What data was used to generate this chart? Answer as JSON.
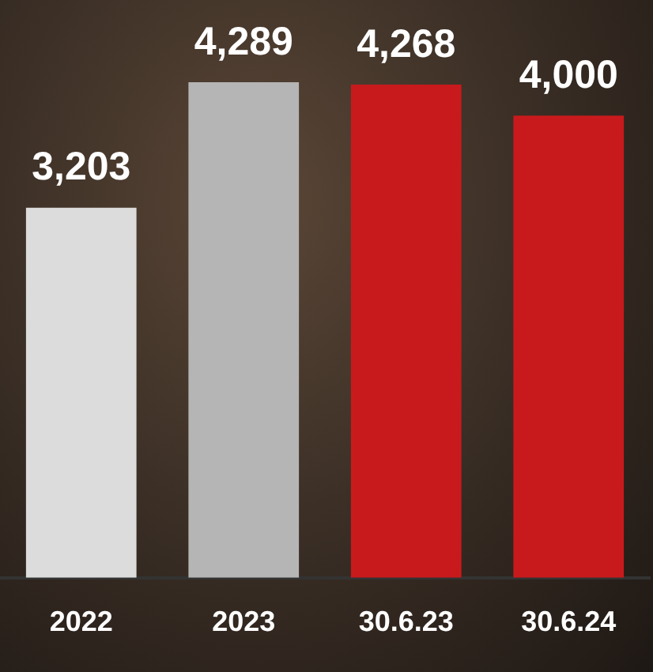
{
  "chart_data": {
    "type": "bar",
    "categories": [
      "2022",
      "2023",
      "30.6.23",
      "30.6.24"
    ],
    "values": [
      3203,
      4289,
      4268,
      4000
    ],
    "colors": [
      "#dcdcdc",
      "#b5b5b5",
      "#c81a1c",
      "#c81a1c"
    ],
    "ylim": [
      0,
      5000
    ],
    "tick_labels": "x",
    "grid": false,
    "legend": false,
    "data_labels": true,
    "value_labels": [
      "3,203",
      "4,289",
      "4,268",
      "4,000"
    ]
  }
}
